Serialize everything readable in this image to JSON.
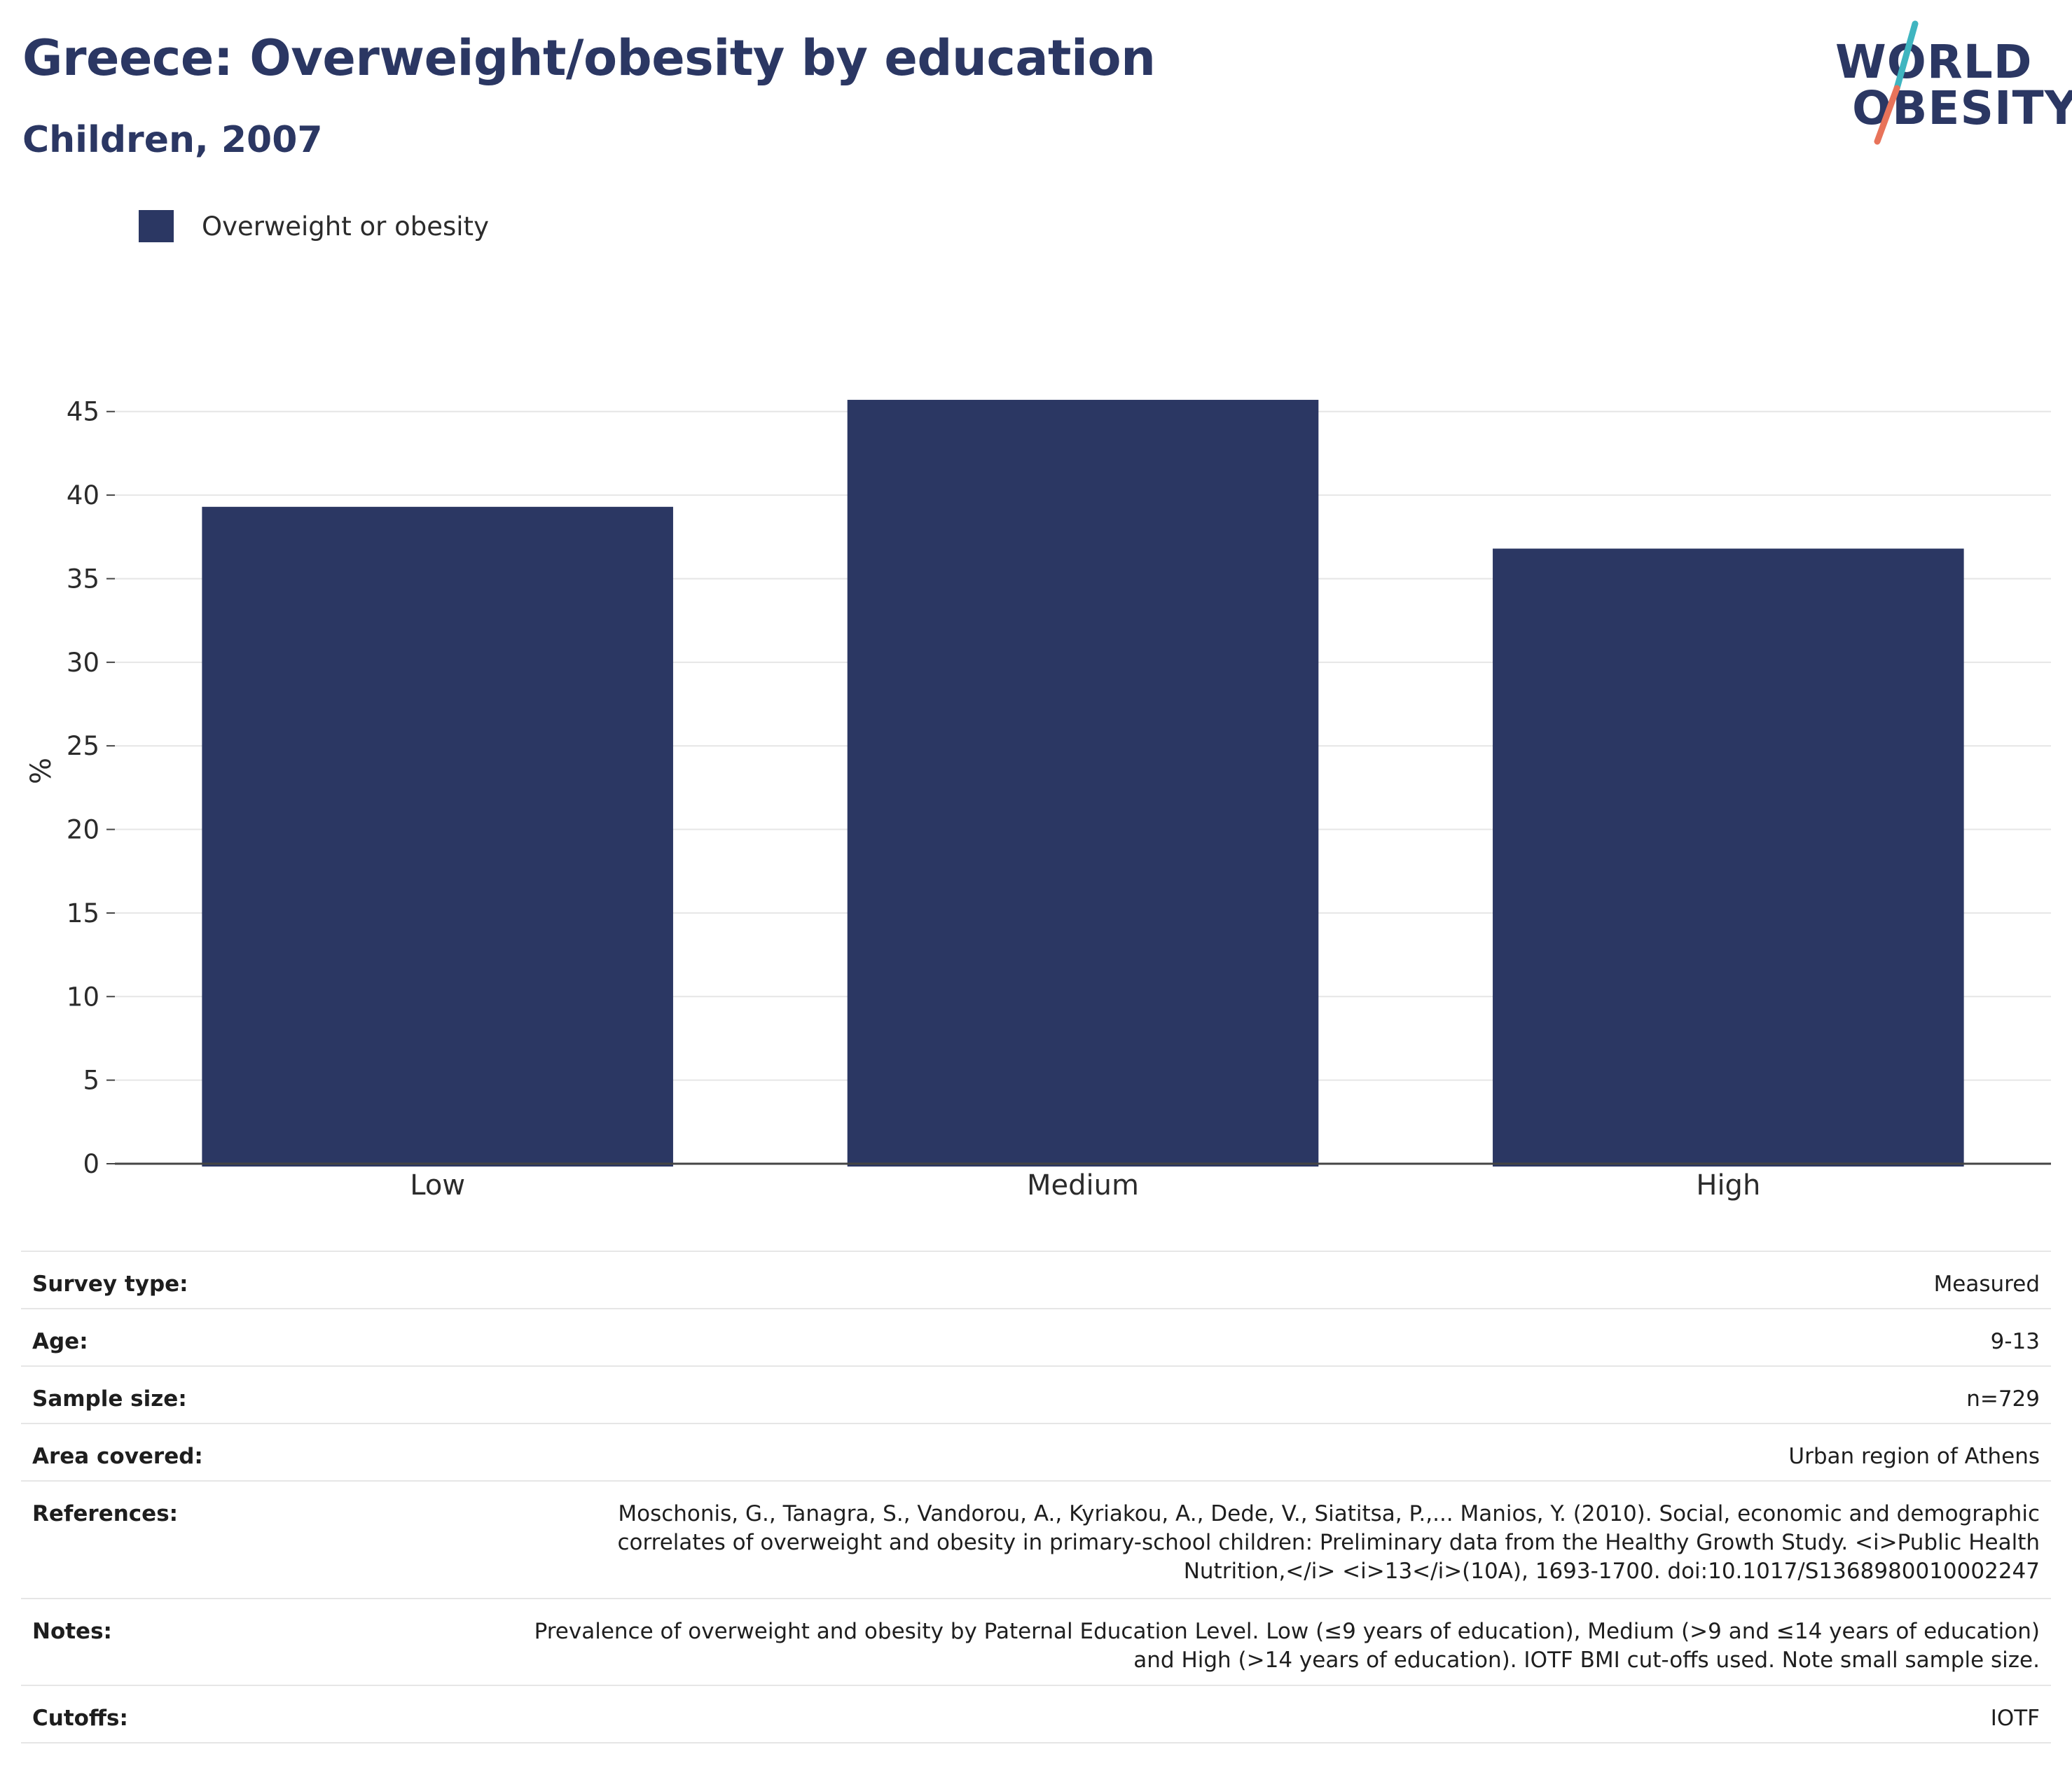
{
  "header": {
    "title": "Greece: Overweight/obesity by education",
    "subtitle": "Children, 2007"
  },
  "logo": {
    "line1": "WORLD",
    "line2": "OBESITY",
    "colors": {
      "text": "#2b3763",
      "slash_top": "#3fb5c0",
      "slash_bottom": "#e8735a"
    }
  },
  "colors": {
    "bar": "#2b3763",
    "gridline": "#e6e6e6",
    "axis": "#444444",
    "tick_text": "#2b2b2b"
  },
  "chart_data": {
    "type": "bar",
    "categories": [
      "Low",
      "Medium",
      "High"
    ],
    "series": [
      {
        "name": "Overweight or obesity",
        "values": [
          39.3,
          45.7,
          36.8
        ],
        "color": "#2b3763"
      }
    ],
    "ylabel": "%",
    "xlabel": "",
    "ylim": [
      0,
      47
    ],
    "yticks": [
      0,
      5,
      10,
      15,
      20,
      25,
      30,
      35,
      40,
      45
    ],
    "grid": true,
    "legend_position": "top-left"
  },
  "info": [
    {
      "label": "Survey type:",
      "value": "Measured"
    },
    {
      "label": "Age:",
      "value": "9-13"
    },
    {
      "label": "Sample size:",
      "value": "n=729"
    },
    {
      "label": "Area covered:",
      "value": "Urban region of Athens"
    },
    {
      "label": "References:",
      "value": "Moschonis, G., Tanagra, S., Vandorou, A., Kyriakou, A., Dede, V., Siatitsa, P.,... Manios, Y. (2010). Social, economic and demographic correlates of overweight and obesity in primary-school children: Preliminary data from the Healthy Growth Study. <i>Public Health Nutrition,</i> <i>13</i>(10A), 1693-1700. doi:10.1017/S1368980010002247"
    },
    {
      "label": "Notes:",
      "value": "Prevalence of overweight and obesity by Paternal Education Level. Low (≤9 years of education), Medium (>9 and ≤14 years of education) and High (>14 years of education). IOTF BMI cut-offs used. Note small sample size."
    },
    {
      "label": "Cutoffs:",
      "value": "IOTF"
    }
  ]
}
